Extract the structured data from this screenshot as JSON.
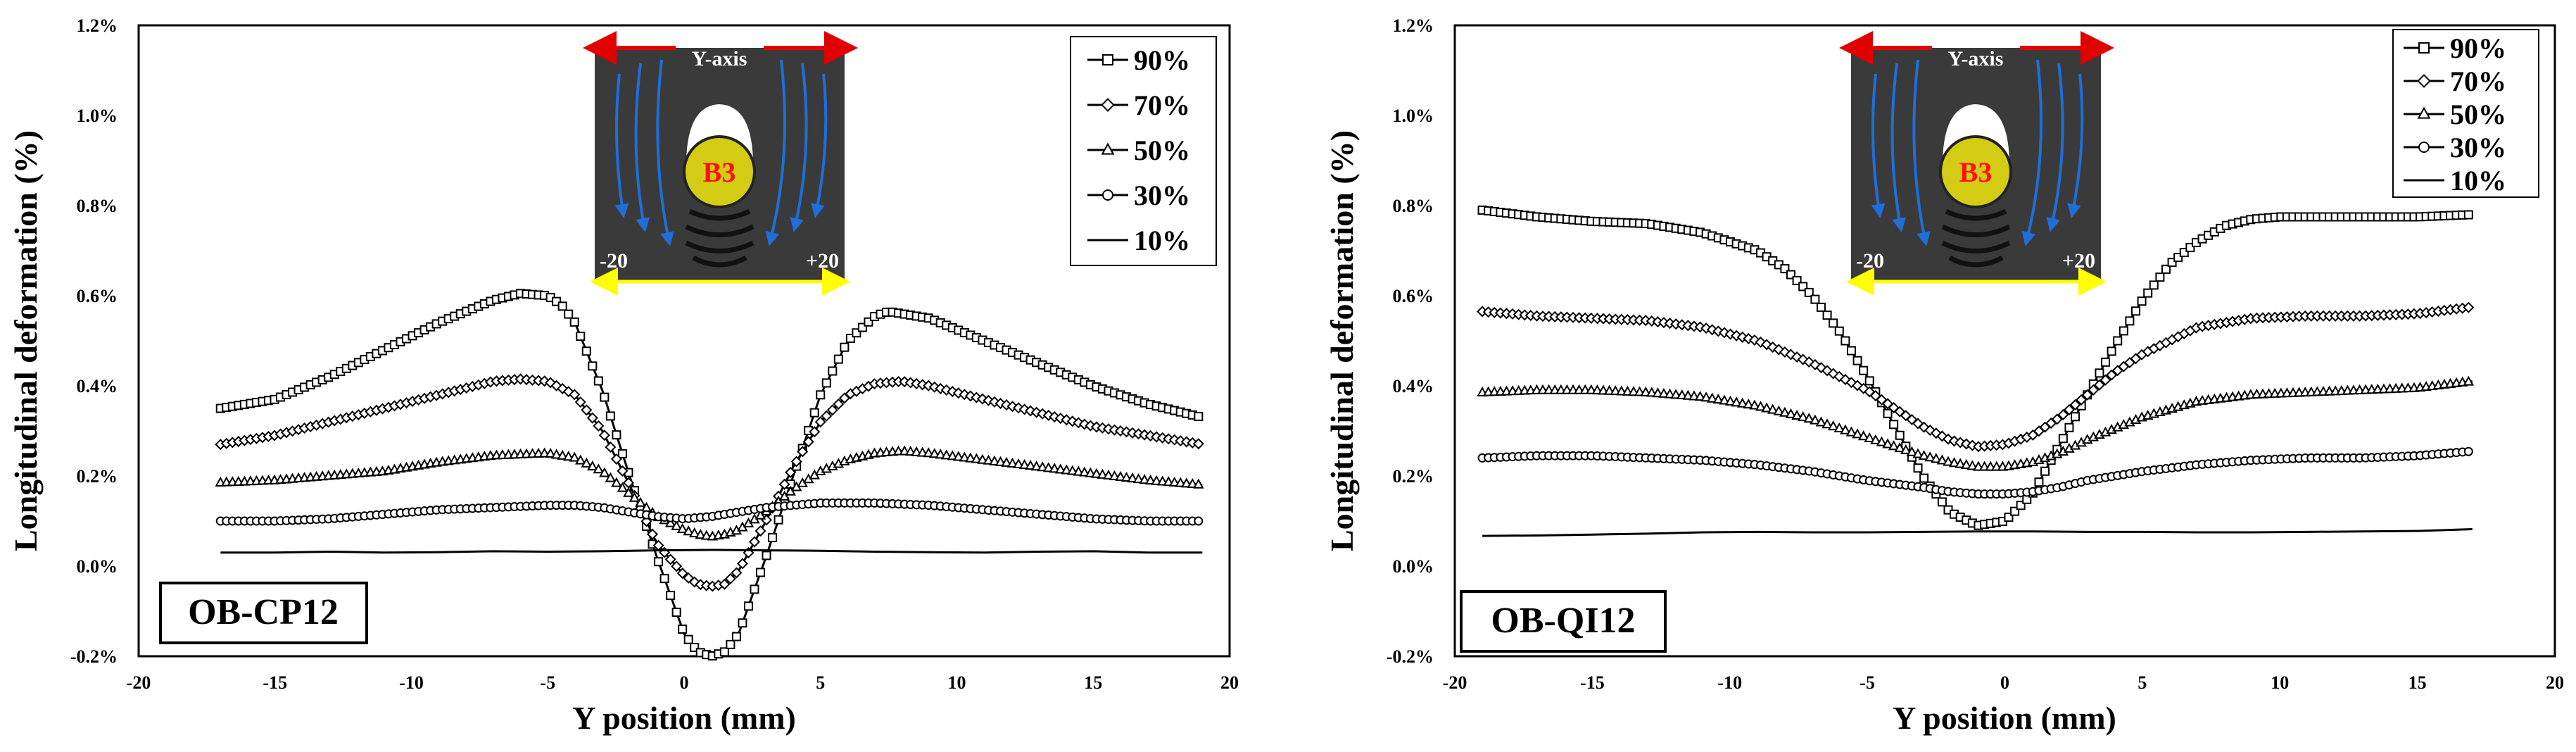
{
  "chart_data": [
    {
      "type": "line",
      "specimen_label": "OB-CP12",
      "xlabel": "Y position (mm)",
      "ylabel": "Longitudinal deformation (%)",
      "xlim": [
        -20,
        20
      ],
      "ylim": [
        -0.2,
        1.2
      ],
      "x_ticks": [
        "-20",
        "-15",
        "-10",
        "-5",
        "0",
        "5",
        "10",
        "15",
        "20"
      ],
      "y_ticks": [
        "-0.2%",
        "0.0%",
        "0.2%",
        "0.4%",
        "0.6%",
        "0.8%",
        "1.0%",
        "1.2%"
      ],
      "grid": false,
      "legend_position": "top-right",
      "inset": {
        "top_label": "Y-axis",
        "circle_label": "B3",
        "left_label": "-20",
        "right_label": "+20"
      },
      "series": [
        {
          "name": "90%",
          "marker": "square",
          "x": [
            -17,
            -15,
            -13,
            -11,
            -9,
            -7,
            -6,
            -5,
            -4.5,
            -4,
            -3,
            -2,
            -1,
            0,
            0.5,
            1,
            1.5,
            2,
            3,
            4,
            5,
            6,
            7,
            7.5,
            9,
            11,
            13,
            15,
            17,
            19
          ],
          "y": [
            0.35,
            0.37,
            0.42,
            0.48,
            0.54,
            0.59,
            0.605,
            0.6,
            0.58,
            0.54,
            0.39,
            0.2,
            0.02,
            -0.15,
            -0.19,
            -0.2,
            -0.19,
            -0.15,
            0.02,
            0.2,
            0.38,
            0.5,
            0.555,
            0.565,
            0.55,
            0.5,
            0.45,
            0.4,
            0.36,
            0.33
          ]
        },
        {
          "name": "70%",
          "marker": "diamond",
          "x": [
            -17,
            -15,
            -13,
            -11,
            -9,
            -7,
            -6,
            -5,
            -4,
            -3,
            -2,
            -1,
            0,
            0.5,
            1,
            1.5,
            2,
            3,
            4,
            5,
            6,
            7,
            8,
            9,
            11,
            13,
            15,
            17,
            19
          ],
          "y": [
            0.27,
            0.29,
            0.32,
            0.35,
            0.38,
            0.41,
            0.415,
            0.41,
            0.38,
            0.3,
            0.18,
            0.05,
            -0.02,
            -0.04,
            -0.045,
            -0.04,
            -0.01,
            0.1,
            0.22,
            0.32,
            0.38,
            0.405,
            0.41,
            0.4,
            0.37,
            0.34,
            0.31,
            0.29,
            0.27
          ]
        },
        {
          "name": "50%",
          "marker": "triangle",
          "x": [
            -17,
            -15,
            -13,
            -11,
            -9,
            -7,
            -5,
            -4,
            -3,
            -2,
            -1,
            0,
            0.5,
            1,
            1.5,
            2,
            3,
            4,
            5,
            6,
            7,
            8,
            9,
            11,
            13,
            15,
            17,
            19
          ],
          "y": [
            0.185,
            0.19,
            0.2,
            0.21,
            0.23,
            0.245,
            0.25,
            0.24,
            0.21,
            0.16,
            0.11,
            0.08,
            0.07,
            0.065,
            0.07,
            0.08,
            0.12,
            0.17,
            0.21,
            0.235,
            0.25,
            0.255,
            0.25,
            0.235,
            0.22,
            0.205,
            0.19,
            0.18
          ]
        },
        {
          "name": "30%",
          "marker": "circle",
          "x": [
            -17,
            -15,
            -13,
            -11,
            -9,
            -7,
            -5,
            -4,
            -3,
            -2,
            -1,
            0,
            1,
            2,
            3,
            4,
            5,
            7,
            9,
            11,
            13,
            15,
            17,
            19
          ],
          "y": [
            0.1,
            0.1,
            0.105,
            0.115,
            0.125,
            0.13,
            0.135,
            0.135,
            0.13,
            0.12,
            0.11,
            0.105,
            0.11,
            0.12,
            0.13,
            0.135,
            0.14,
            0.14,
            0.135,
            0.125,
            0.115,
            0.105,
            0.1,
            0.1
          ]
        },
        {
          "name": "10%",
          "marker": "none",
          "x": [
            -17,
            -15,
            -13,
            -11,
            -9,
            -7,
            -5,
            -3,
            -1,
            1,
            3,
            5,
            7,
            9,
            11,
            13,
            15,
            17,
            19
          ],
          "y": [
            0.03,
            0.03,
            0.032,
            0.03,
            0.031,
            0.033,
            0.032,
            0.033,
            0.035,
            0.036,
            0.035,
            0.034,
            0.032,
            0.031,
            0.03,
            0.032,
            0.033,
            0.03,
            0.03
          ]
        }
      ]
    },
    {
      "type": "line",
      "specimen_label": "OB-QI12",
      "xlabel": "Y position (mm)",
      "ylabel": "Longitudinal deformation (%)",
      "xlim": [
        -20,
        20
      ],
      "ylim": [
        -0.2,
        1.2
      ],
      "x_ticks": [
        "-20",
        "-15",
        "-10",
        "-5",
        "0",
        "5",
        "10",
        "15",
        "20"
      ],
      "y_ticks": [
        "-0.2%",
        "0.0%",
        "0.2%",
        "0.4%",
        "0.6%",
        "0.8%",
        "1.0%",
        "1.2%"
      ],
      "grid": false,
      "legend_position": "top-right",
      "inset": {
        "top_label": "Y-axis",
        "circle_label": "B3",
        "left_label": "-20",
        "right_label": "+20"
      },
      "series": [
        {
          "name": "90%",
          "marker": "square",
          "x": [
            -19,
            -17,
            -15,
            -13,
            -11,
            -9,
            -8,
            -7,
            -6,
            -5,
            -4,
            -3,
            -2,
            -1,
            0,
            1,
            2,
            3,
            4,
            5,
            6,
            7,
            8,
            9,
            10,
            11,
            13,
            15,
            17
          ],
          "y": [
            0.79,
            0.775,
            0.765,
            0.76,
            0.74,
            0.7,
            0.66,
            0.6,
            0.52,
            0.42,
            0.31,
            0.2,
            0.12,
            0.09,
            0.1,
            0.16,
            0.27,
            0.38,
            0.49,
            0.59,
            0.67,
            0.72,
            0.755,
            0.77,
            0.775,
            0.775,
            0.775,
            0.775,
            0.78
          ]
        },
        {
          "name": "70%",
          "marker": "diamond",
          "x": [
            -19,
            -17,
            -15,
            -13,
            -11,
            -9,
            -7,
            -5,
            -4,
            -3,
            -2,
            -1,
            0,
            1,
            2,
            3,
            4,
            5,
            7,
            9,
            11,
            13,
            15,
            17
          ],
          "y": [
            0.565,
            0.555,
            0.55,
            0.545,
            0.53,
            0.5,
            0.45,
            0.39,
            0.35,
            0.31,
            0.28,
            0.265,
            0.27,
            0.29,
            0.33,
            0.38,
            0.43,
            0.47,
            0.53,
            0.55,
            0.555,
            0.555,
            0.56,
            0.575
          ]
        },
        {
          "name": "50%",
          "marker": "triangle",
          "x": [
            -19,
            -17,
            -15,
            -13,
            -11,
            -9,
            -7,
            -5,
            -3,
            -2,
            -1,
            0,
            1,
            2,
            3,
            5,
            7,
            9,
            11,
            13,
            15,
            17
          ],
          "y": [
            0.385,
            0.39,
            0.39,
            0.385,
            0.375,
            0.355,
            0.325,
            0.285,
            0.245,
            0.23,
            0.22,
            0.22,
            0.23,
            0.25,
            0.28,
            0.33,
            0.365,
            0.38,
            0.385,
            0.39,
            0.395,
            0.41
          ]
        },
        {
          "name": "30%",
          "marker": "circle",
          "x": [
            -19,
            -17,
            -15,
            -13,
            -11,
            -9,
            -7,
            -5,
            -3,
            -2,
            -1,
            0,
            1,
            2,
            3,
            5,
            7,
            9,
            11,
            13,
            15,
            17
          ],
          "y": [
            0.24,
            0.245,
            0.245,
            0.24,
            0.235,
            0.225,
            0.21,
            0.19,
            0.175,
            0.165,
            0.16,
            0.16,
            0.165,
            0.175,
            0.19,
            0.21,
            0.225,
            0.235,
            0.24,
            0.24,
            0.245,
            0.255
          ]
        },
        {
          "name": "10%",
          "marker": "none",
          "x": [
            -19,
            -17,
            -15,
            -13,
            -11,
            -9,
            -7,
            -5,
            -3,
            -1,
            1,
            3,
            5,
            7,
            9,
            11,
            13,
            15,
            17
          ],
          "y": [
            0.067,
            0.068,
            0.07,
            0.072,
            0.075,
            0.076,
            0.075,
            0.075,
            0.076,
            0.077,
            0.077,
            0.076,
            0.076,
            0.075,
            0.075,
            0.076,
            0.077,
            0.078,
            0.082
          ]
        }
      ]
    }
  ]
}
